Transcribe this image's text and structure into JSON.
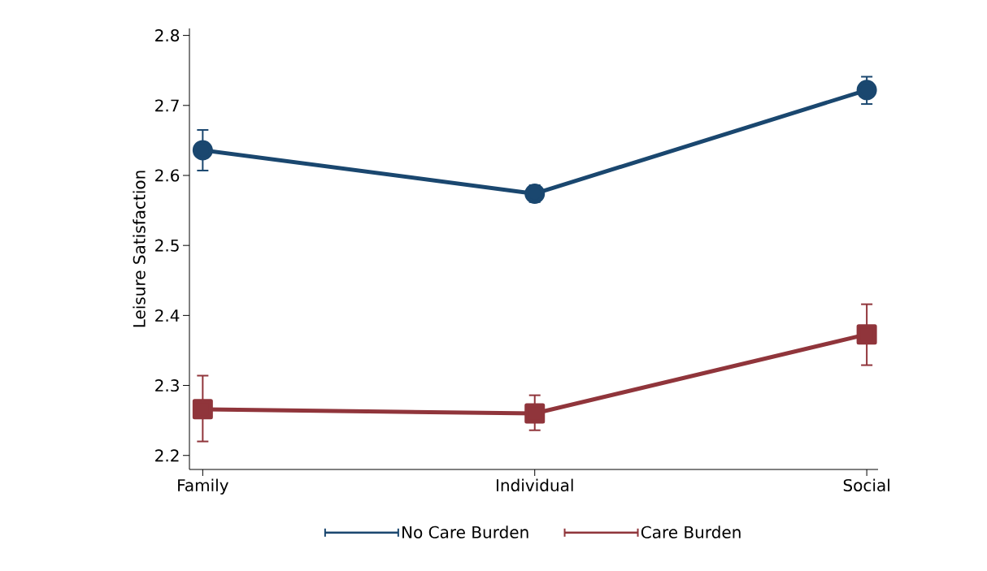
{
  "chart_data": {
    "type": "line",
    "ylabel": "Leisure Satisfaction",
    "categories": [
      "Family",
      "Individual",
      "Social"
    ],
    "ylim": [
      2.18,
      2.81
    ],
    "yticks": [
      2.2,
      2.3,
      2.4,
      2.5,
      2.6,
      2.7,
      2.8
    ],
    "grid": false,
    "legend": "bottom",
    "line_style": "solid",
    "series": [
      {
        "name": "No Care Burden",
        "color": "#1a476f",
        "marker": "circle",
        "values": [
          2.636,
          2.574,
          2.722
        ],
        "errors": [
          [
            2.607,
            2.665
          ],
          [
            2.562,
            2.586
          ],
          [
            2.702,
            2.741
          ]
        ]
      },
      {
        "name": "Care Burden",
        "color": "#90353b",
        "marker": "square",
        "values": [
          2.266,
          2.26,
          2.373
        ],
        "errors": [
          [
            2.22,
            2.314
          ],
          [
            2.236,
            2.286
          ],
          [
            2.329,
            2.416
          ]
        ]
      }
    ]
  }
}
